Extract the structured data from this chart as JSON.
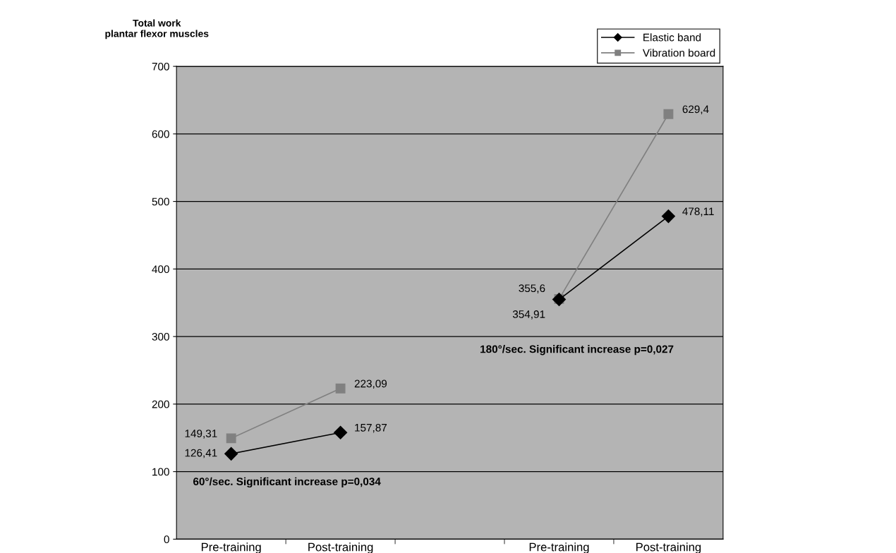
{
  "chart_data": {
    "type": "line",
    "title": "Total work\nplantar flexor muscles",
    "categories": [
      "Pre-training",
      "Post-training",
      null,
      "Pre-training",
      "Post-training"
    ],
    "series": [
      {
        "name": "Elastic band",
        "color": "#000000",
        "marker": "diamond",
        "values": [
          126.41,
          157.87,
          null,
          354.91,
          478.11
        ],
        "value_labels": [
          "126,41",
          "157,87",
          null,
          "354,91",
          "478,11"
        ]
      },
      {
        "name": "Vibration board",
        "color": "#808080",
        "marker": "square",
        "values": [
          149.31,
          223.09,
          null,
          355.6,
          629.4
        ],
        "value_labels": [
          "149,31",
          "223,09",
          null,
          "355,6",
          "629,4"
        ]
      }
    ],
    "ylim": [
      0,
      700
    ],
    "yticks": [
      0,
      100,
      200,
      300,
      400,
      500,
      600,
      700
    ],
    "grid": "y",
    "legend": "top right",
    "annotations": [
      "60°/sec. Significant increase p=0,034",
      "180°/sec. Significant increase p=0,027"
    ]
  }
}
